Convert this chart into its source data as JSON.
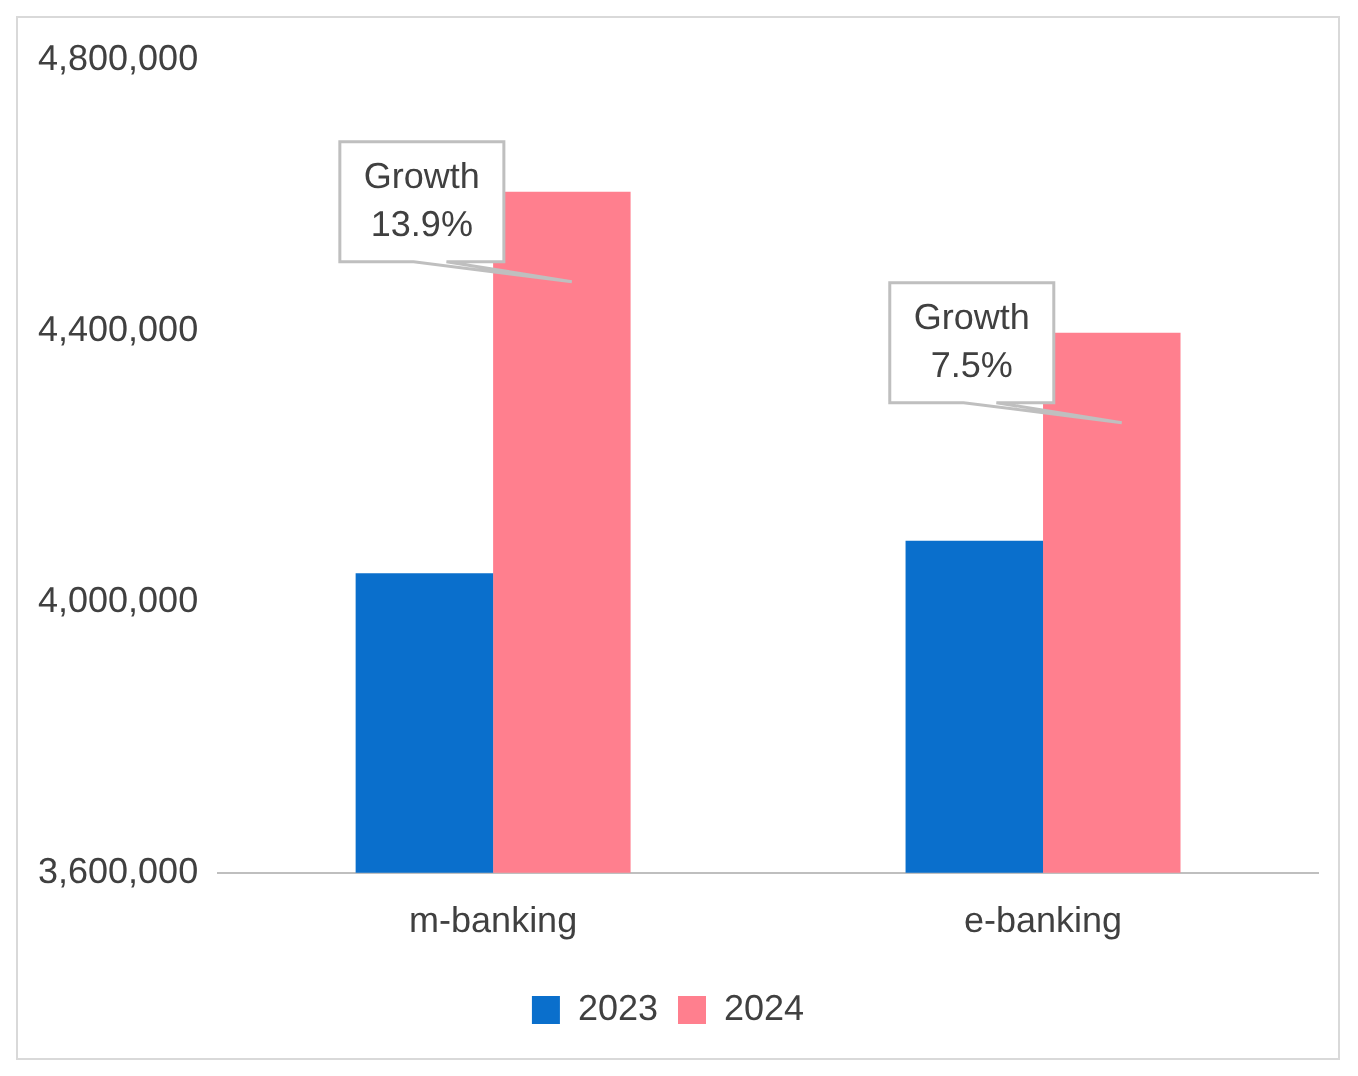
{
  "chart_data": {
    "type": "bar",
    "categories": [
      "m-banking",
      "e-banking"
    ],
    "series": [
      {
        "name": "2023",
        "color": "#0a6fcc",
        "values": [
          4042000,
          4090000
        ]
      },
      {
        "name": "2024",
        "color": "#ff7f8e",
        "values": [
          4605000,
          4397000
        ]
      }
    ],
    "ylim": [
      3600000,
      4800000
    ],
    "yticks": [
      {
        "value": 3600000,
        "label": "3,600,000"
      },
      {
        "value": 4000000,
        "label": "4,000,000"
      },
      {
        "value": 4400000,
        "label": "4,400,000"
      },
      {
        "value": 4800000,
        "label": "4,800,000"
      }
    ],
    "grid": false,
    "legend": "bottom",
    "annotations": [
      {
        "text": "Growth 13.9%",
        "x": "m-banking",
        "y": 4605000
      },
      {
        "text": "Growth 7.5%",
        "x": "e-banking",
        "y": 4397000
      }
    ]
  }
}
